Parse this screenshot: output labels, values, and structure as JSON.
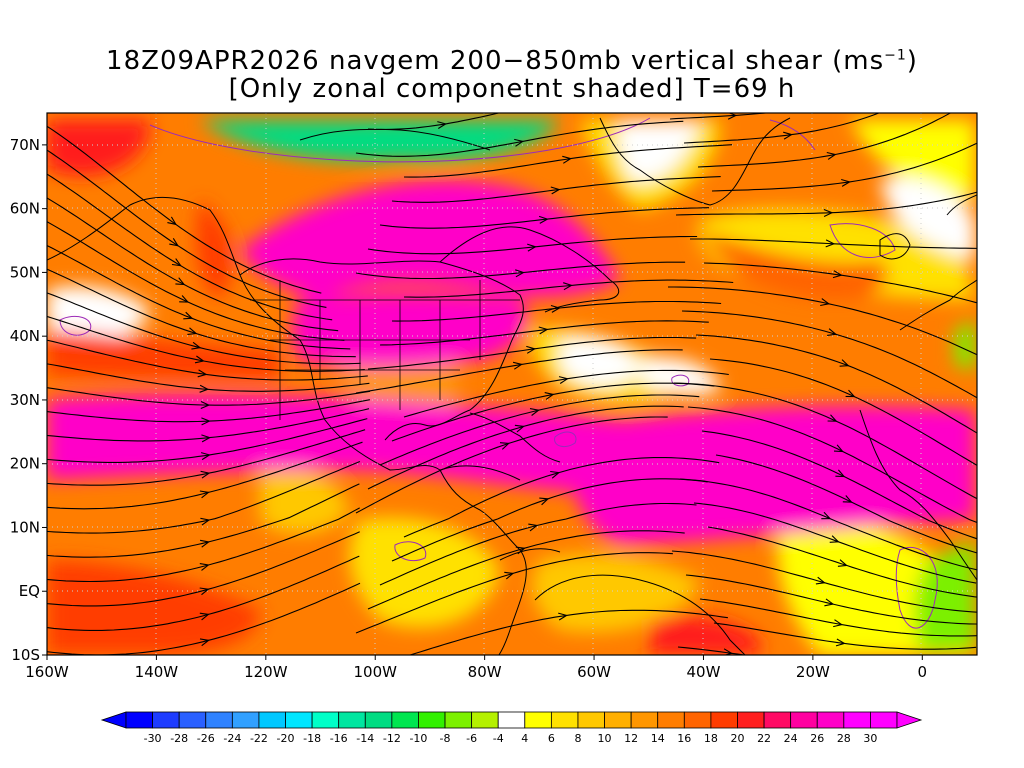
{
  "title": {
    "line1_prefix": "18Z09APR2026 navgem 200−850mb vertical shear (ms",
    "line1_sup": "−1",
    "line1_suffix": ")",
    "line2": "[Only zonal componetnt shaded] T=69 h"
  },
  "map": {
    "lon_range": [
      -160,
      10
    ],
    "lat_range": [
      -10,
      75
    ],
    "lon_ticks": [
      {
        "value": -160,
        "label": "160W"
      },
      {
        "value": -140,
        "label": "140W"
      },
      {
        "value": -120,
        "label": "120W"
      },
      {
        "value": -100,
        "label": "100W"
      },
      {
        "value": -80,
        "label": "80W"
      },
      {
        "value": -60,
        "label": "60W"
      },
      {
        "value": -40,
        "label": "40W"
      },
      {
        "value": -20,
        "label": "20W"
      },
      {
        "value": 0,
        "label": "0"
      }
    ],
    "lat_ticks": [
      {
        "value": 70,
        "label": "70N"
      },
      {
        "value": 60,
        "label": "60N"
      },
      {
        "value": 50,
        "label": "50N"
      },
      {
        "value": 40,
        "label": "40N"
      },
      {
        "value": 30,
        "label": "30N"
      },
      {
        "value": 20,
        "label": "20N"
      },
      {
        "value": 10,
        "label": "10N"
      },
      {
        "value": 0,
        "label": "EQ"
      },
      {
        "value": -10,
        "label": "10S"
      }
    ],
    "gridlines": "dotted"
  },
  "colorbar": {
    "labels": [
      "-30",
      "-28",
      "-26",
      "-24",
      "-22",
      "-20",
      "-18",
      "-16",
      "-14",
      "-12",
      "-10",
      "-8",
      "-6",
      "-4",
      "4",
      "6",
      "8",
      "10",
      "12",
      "14",
      "16",
      "18",
      "20",
      "22",
      "24",
      "26",
      "28",
      "30"
    ],
    "colors": [
      "#0000ff",
      "#1e3cff",
      "#2a60ff",
      "#2f82ff",
      "#31a0ff",
      "#00c8ff",
      "#00e6ff",
      "#00ffc8",
      "#00e6a0",
      "#00dc82",
      "#00e650",
      "#32f000",
      "#7cf000",
      "#b4f000",
      "#ffffff",
      "#ffff00",
      "#ffe100",
      "#ffc800",
      "#ffaf00",
      "#ff9600",
      "#ff7d00",
      "#ff6400",
      "#ff3c00",
      "#ff1e1e",
      "#ff0a64",
      "#ff00a0",
      "#ff00c8",
      "#ff00ff",
      "#ff00ff"
    ]
  }
}
